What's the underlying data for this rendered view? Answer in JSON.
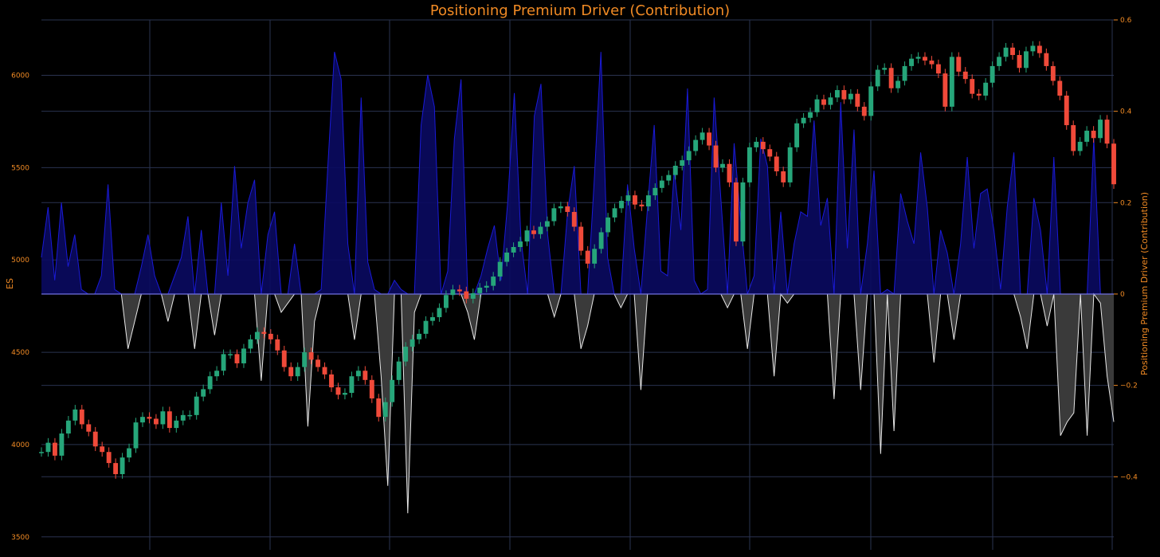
{
  "chart_data": {
    "type": "line",
    "title": "Positioning Premium Driver (Contribution)",
    "left_axis": {
      "label": "ES",
      "ylim": [
        3430,
        6300
      ],
      "ticks": [
        3500,
        4000,
        4500,
        5000,
        5500,
        6000
      ]
    },
    "right_axis": {
      "label": "Positioning Premium Driver (Contribution)",
      "ylim": [
        -0.56,
        0.6
      ],
      "ticks": [
        0.6,
        0.4,
        0.2,
        0,
        -0.2,
        -0.4
      ]
    },
    "grid": true,
    "colors": {
      "up": "#26a67a",
      "down": "#f04a3a",
      "positive_fill": "#0a0a60",
      "positive_line": "#1a1ad8",
      "negative_fill": "#3a3a3a",
      "negative_line": "#e8e8e8",
      "zero_line": "#7070e0",
      "text": "#f08a24"
    },
    "series": [
      {
        "type": "candlestick",
        "values": [
          3960,
          4010,
          3940,
          4060,
          4130,
          4190,
          4110,
          4070,
          3990,
          3960,
          3900,
          3840,
          3930,
          3980,
          4120,
          4150,
          4140,
          4110,
          4180,
          4090,
          4130,
          4160,
          4160,
          4260,
          4300,
          4370,
          4400,
          4490,
          4490,
          4440,
          4520,
          4570,
          4610,
          4600,
          4570,
          4510,
          4420,
          4370,
          4420,
          4500,
          4460,
          4420,
          4380,
          4310,
          4270,
          4280,
          4370,
          4400,
          4350,
          4250,
          4150,
          4230,
          4350,
          4450,
          4530,
          4570,
          4600,
          4670,
          4690,
          4740,
          4810,
          4840,
          4830,
          4790,
          4820,
          4850,
          4860,
          4910,
          4990,
          5040,
          5070,
          5100,
          5160,
          5140,
          5180,
          5210,
          5280,
          5290,
          5260,
          5180,
          5050,
          4980,
          5060,
          5150,
          5230,
          5280,
          5320,
          5350,
          5300,
          5290,
          5350,
          5390,
          5430,
          5460,
          5510,
          5540,
          5590,
          5650,
          5690,
          5620,
          5500,
          5520,
          5420,
          5100,
          5420,
          5610,
          5640,
          5600,
          5560,
          5480,
          5420,
          5610,
          5740,
          5770,
          5800,
          5870,
          5840,
          5880,
          5920,
          5870,
          5900,
          5830,
          5780,
          5940,
          6030,
          6040,
          5930,
          5970,
          6050,
          6090,
          6100,
          6080,
          6060,
          6010,
          5830,
          6100,
          6020,
          5980,
          5900,
          5890,
          5960,
          6050,
          6100,
          6150,
          6110,
          6040,
          6130,
          6160,
          6120,
          6050,
          5970,
          5890,
          5730,
          5590,
          5640,
          5700,
          5660,
          5760,
          5630,
          5410
        ]
      },
      {
        "type": "area",
        "name": "Positioning Premium Driver (Contribution)",
        "values": [
          0.08,
          0.19,
          0.03,
          0.2,
          0.06,
          0.13,
          0.01,
          0,
          0,
          0.04,
          0.24,
          0.01,
          0,
          -0.12,
          -0.06,
          0.06,
          0.13,
          0.04,
          0,
          -0.06,
          0.04,
          0.08,
          0.17,
          -0.12,
          0.14,
          0,
          -0.09,
          0.2,
          0.04,
          0.28,
          0.1,
          0.2,
          0.25,
          -0.19,
          0.13,
          0.18,
          -0.04,
          -0.02,
          0.11,
          0,
          -0.29,
          -0.06,
          0.01,
          0.28,
          0.53,
          0.47,
          0.11,
          -0.1,
          0.43,
          0.07,
          0.01,
          -0.18,
          -0.42,
          0.03,
          0.01,
          -0.48,
          -0.04,
          0.37,
          0.48,
          0.41,
          0,
          0.05,
          0.34,
          0.47,
          -0.04,
          -0.1,
          0.04,
          0.1,
          0.15,
          0.03,
          0.2,
          0.44,
          0.12,
          0,
          0.39,
          0.46,
          0.13,
          -0.05,
          0,
          0.18,
          0.28,
          -0.12,
          -0.07,
          0.25,
          0.53,
          0.08,
          0,
          -0.03,
          0.24,
          0.1,
          -0.21,
          0.19,
          0.37,
          0.05,
          0.04,
          0.27,
          0.14,
          0.45,
          0.03,
          0,
          0.01,
          0.43,
          0.21,
          -0.03,
          0.33,
          0.16,
          -0.12,
          0.04,
          0.34,
          0.28,
          -0.18,
          0.18,
          -0.02,
          0.11,
          0.18,
          0.17,
          0.38,
          0.15,
          0.21,
          -0.23,
          0.42,
          0.1,
          0.36,
          -0.21,
          0.11,
          0.27,
          -0.35,
          0.01,
          -0.3,
          0.22,
          0.16,
          0.11,
          0.31,
          0.19,
          -0.15,
          0.14,
          0.09,
          -0.1,
          0.11,
          0.3,
          0.1,
          0.22,
          0.23,
          0.14,
          0.01,
          0.19,
          0.31,
          -0.05,
          -0.12,
          0.21,
          0.14,
          -0.07,
          0.3,
          -0.31,
          -0.28,
          -0.26,
          0,
          -0.31,
          0.34,
          -0.02,
          -0.18,
          -0.28
        ]
      }
    ]
  }
}
